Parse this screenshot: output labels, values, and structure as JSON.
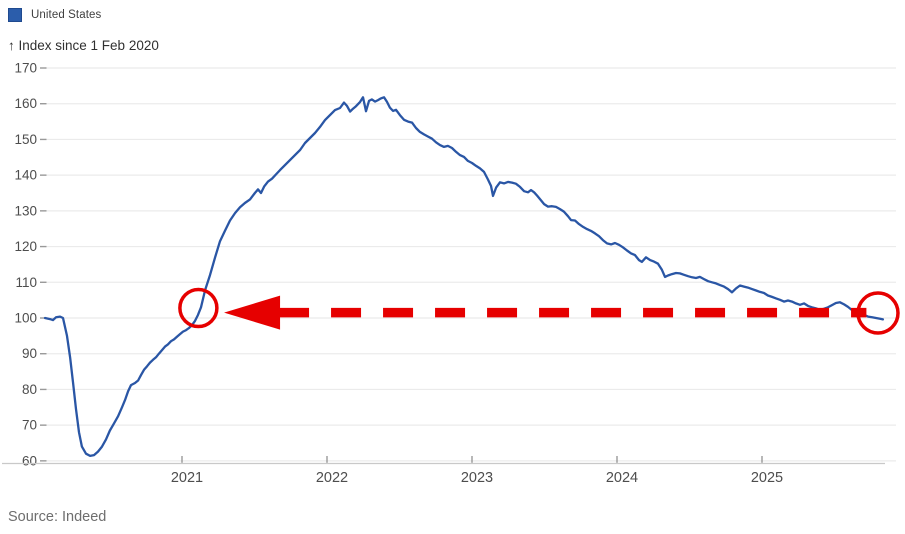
{
  "legend": {
    "label": "United States"
  },
  "source": {
    "label": "Source: Indeed"
  },
  "colors": {
    "line": "#2a56a5",
    "annotation_red": "#e60000",
    "grid": "#ebebeb",
    "axis_line": "#c9c9c9",
    "tick_mark": "#999999",
    "tick_label": "#4d4d4d",
    "title_text": "#303030",
    "source_text": "#6e6e6e",
    "legend_swatch": "#2b5dab"
  },
  "chart_data": {
    "type": "line",
    "title": "",
    "y_axis_title": "↑ Index since 1 Feb 2020",
    "xlabel": "",
    "ylabel": "Index since 1 Feb 2020",
    "x_ticks": [
      2021,
      2022,
      2023,
      2024,
      2025
    ],
    "y_ticks": [
      60,
      70,
      80,
      90,
      100,
      110,
      120,
      130,
      140,
      150,
      160,
      170
    ],
    "x_range_years": [
      2020.05,
      2025.9
    ],
    "ylim": [
      60,
      170
    ],
    "grid": true,
    "legend_position": "top-left",
    "baseline_value": 100,
    "series": [
      {
        "name": "United States",
        "color": "#2a56a5",
        "points": [
          [
            2020.055,
            100
          ],
          [
            2020.09,
            99.7
          ],
          [
            2020.11,
            99.4
          ],
          [
            2020.131,
            100.2
          ],
          [
            2020.159,
            100.4
          ],
          [
            2020.179,
            100
          ],
          [
            2020.207,
            95
          ],
          [
            2020.228,
            89
          ],
          [
            2020.248,
            82
          ],
          [
            2020.269,
            74.5
          ],
          [
            2020.29,
            68
          ],
          [
            2020.31,
            64
          ],
          [
            2020.338,
            62
          ],
          [
            2020.366,
            61.4
          ],
          [
            2020.393,
            61.6
          ],
          [
            2020.421,
            62.6
          ],
          [
            2020.448,
            64
          ],
          [
            2020.476,
            66
          ],
          [
            2020.503,
            68.5
          ],
          [
            2020.531,
            70.5
          ],
          [
            2020.559,
            72.5
          ],
          [
            2020.586,
            75
          ],
          [
            2020.607,
            77
          ],
          [
            2020.628,
            79.5
          ],
          [
            2020.648,
            81.2
          ],
          [
            2020.676,
            81.8
          ],
          [
            2020.697,
            82.5
          ],
          [
            2020.717,
            84
          ],
          [
            2020.738,
            85.5
          ],
          [
            2020.759,
            86.5
          ],
          [
            2020.779,
            87.5
          ],
          [
            2020.8,
            88.3
          ],
          [
            2020.821,
            89
          ],
          [
            2020.841,
            90
          ],
          [
            2020.862,
            91
          ],
          [
            2020.883,
            92
          ],
          [
            2020.903,
            92.6
          ],
          [
            2020.924,
            93.5
          ],
          [
            2020.945,
            94
          ],
          [
            2020.966,
            94.8
          ],
          [
            2020.986,
            95.5
          ],
          [
            2021.007,
            96.2
          ],
          [
            2021.028,
            96.6
          ],
          [
            2021.048,
            97.2
          ],
          [
            2021.069,
            98
          ],
          [
            2021.09,
            99.2
          ],
          [
            2021.11,
            100.8
          ],
          [
            2021.131,
            103
          ],
          [
            2021.159,
            107.8
          ],
          [
            2021.193,
            112
          ],
          [
            2021.228,
            117
          ],
          [
            2021.262,
            121.5
          ],
          [
            2021.297,
            124.5
          ],
          [
            2021.331,
            127.3
          ],
          [
            2021.366,
            129.4
          ],
          [
            2021.4,
            131
          ],
          [
            2021.434,
            132.2
          ],
          [
            2021.469,
            133.2
          ],
          [
            2021.503,
            135
          ],
          [
            2021.524,
            136
          ],
          [
            2021.545,
            135
          ],
          [
            2021.566,
            136.8
          ],
          [
            2021.593,
            138.2
          ],
          [
            2021.621,
            139
          ],
          [
            2021.648,
            140.2
          ],
          [
            2021.676,
            141.4
          ],
          [
            2021.71,
            142.8
          ],
          [
            2021.745,
            144.2
          ],
          [
            2021.779,
            145.6
          ],
          [
            2021.814,
            147
          ],
          [
            2021.848,
            149
          ],
          [
            2021.883,
            150.4
          ],
          [
            2021.917,
            151.8
          ],
          [
            2021.952,
            153.5
          ],
          [
            2021.986,
            155.4
          ],
          [
            2022.021,
            156.8
          ],
          [
            2022.055,
            158.2
          ],
          [
            2022.09,
            158.8
          ],
          [
            2022.117,
            160.3
          ],
          [
            2022.138,
            159.4
          ],
          [
            2022.159,
            157.8
          ],
          [
            2022.179,
            158.6
          ],
          [
            2022.2,
            159.3
          ],
          [
            2022.228,
            160.5
          ],
          [
            2022.248,
            161.8
          ],
          [
            2022.269,
            157.9
          ],
          [
            2022.29,
            160.8
          ],
          [
            2022.31,
            161.2
          ],
          [
            2022.331,
            160.6
          ],
          [
            2022.352,
            161
          ],
          [
            2022.372,
            161.5
          ],
          [
            2022.393,
            161.8
          ],
          [
            2022.414,
            160.5
          ],
          [
            2022.434,
            158.9
          ],
          [
            2022.455,
            158
          ],
          [
            2022.476,
            158.3
          ],
          [
            2022.503,
            156.8
          ],
          [
            2022.531,
            155.5
          ],
          [
            2022.559,
            155
          ],
          [
            2022.586,
            154.7
          ],
          [
            2022.614,
            153.2
          ],
          [
            2022.641,
            152.1
          ],
          [
            2022.669,
            151.4
          ],
          [
            2022.697,
            150.8
          ],
          [
            2022.724,
            150.2
          ],
          [
            2022.752,
            149.2
          ],
          [
            2022.779,
            148.4
          ],
          [
            2022.807,
            147.9
          ],
          [
            2022.834,
            148.2
          ],
          [
            2022.862,
            147.6
          ],
          [
            2022.89,
            146.5
          ],
          [
            2022.917,
            145.6
          ],
          [
            2022.945,
            145.1
          ],
          [
            2022.972,
            144
          ],
          [
            2023,
            143.4
          ],
          [
            2023.028,
            142.6
          ],
          [
            2023.055,
            141.9
          ],
          [
            2023.083,
            140.9
          ],
          [
            2023.11,
            138.8
          ],
          [
            2023.131,
            137
          ],
          [
            2023.145,
            134.2
          ],
          [
            2023.166,
            136.5
          ],
          [
            2023.193,
            138
          ],
          [
            2023.221,
            137.7
          ],
          [
            2023.248,
            138.1
          ],
          [
            2023.276,
            137.9
          ],
          [
            2023.303,
            137.6
          ],
          [
            2023.331,
            136.7
          ],
          [
            2023.359,
            135.5
          ],
          [
            2023.386,
            135.2
          ],
          [
            2023.407,
            135.8
          ],
          [
            2023.428,
            135.2
          ],
          [
            2023.448,
            134.3
          ],
          [
            2023.469,
            133.3
          ],
          [
            2023.497,
            131.9
          ],
          [
            2023.524,
            131.2
          ],
          [
            2023.552,
            131.3
          ],
          [
            2023.579,
            131.1
          ],
          [
            2023.607,
            130.5
          ],
          [
            2023.634,
            129.8
          ],
          [
            2023.662,
            128.5
          ],
          [
            2023.683,
            127.4
          ],
          [
            2023.71,
            127.3
          ],
          [
            2023.738,
            126.3
          ],
          [
            2023.766,
            125.5
          ],
          [
            2023.793,
            124.9
          ],
          [
            2023.821,
            124.4
          ],
          [
            2023.848,
            123.7
          ],
          [
            2023.876,
            122.9
          ],
          [
            2023.903,
            121.8
          ],
          [
            2023.931,
            120.9
          ],
          [
            2023.959,
            120.6
          ],
          [
            2023.986,
            121
          ],
          [
            2024.014,
            120.5
          ],
          [
            2024.041,
            119.8
          ],
          [
            2024.069,
            118.9
          ],
          [
            2024.097,
            118.1
          ],
          [
            2024.124,
            117.6
          ],
          [
            2024.152,
            116.2
          ],
          [
            2024.172,
            115.7
          ],
          [
            2024.2,
            117
          ],
          [
            2024.228,
            116.2
          ],
          [
            2024.255,
            115.8
          ],
          [
            2024.283,
            115.2
          ],
          [
            2024.31,
            113.5
          ],
          [
            2024.331,
            111.5
          ],
          [
            2024.352,
            111.9
          ],
          [
            2024.379,
            112.3
          ],
          [
            2024.407,
            112.6
          ],
          [
            2024.434,
            112.5
          ],
          [
            2024.462,
            112.1
          ],
          [
            2024.49,
            111.7
          ],
          [
            2024.517,
            111.4
          ],
          [
            2024.545,
            111.2
          ],
          [
            2024.572,
            111.5
          ],
          [
            2024.6,
            110.9
          ],
          [
            2024.628,
            110.3
          ],
          [
            2024.655,
            110
          ],
          [
            2024.683,
            109.7
          ],
          [
            2024.71,
            109.2
          ],
          [
            2024.738,
            108.8
          ],
          [
            2024.766,
            108.1
          ],
          [
            2024.793,
            107.2
          ],
          [
            2024.821,
            108.3
          ],
          [
            2024.848,
            109.1
          ],
          [
            2024.876,
            108.8
          ],
          [
            2024.903,
            108.5
          ],
          [
            2024.931,
            108.1
          ],
          [
            2024.959,
            107.7
          ],
          [
            2024.986,
            107.3
          ],
          [
            2025.014,
            107
          ],
          [
            2025.041,
            106.3
          ],
          [
            2025.069,
            105.9
          ],
          [
            2025.097,
            105.5
          ],
          [
            2025.124,
            105.1
          ],
          [
            2025.152,
            104.6
          ],
          [
            2025.179,
            104.9
          ],
          [
            2025.207,
            104.6
          ],
          [
            2025.234,
            104.1
          ],
          [
            2025.262,
            103.7
          ],
          [
            2025.29,
            104.1
          ],
          [
            2025.317,
            103.4
          ],
          [
            2025.345,
            103
          ],
          [
            2025.372,
            102.7
          ],
          [
            2025.4,
            102.3
          ],
          [
            2025.428,
            102.6
          ],
          [
            2025.455,
            103
          ],
          [
            2025.483,
            103.6
          ],
          [
            2025.51,
            104.2
          ],
          [
            2025.538,
            104.4
          ],
          [
            2025.566,
            103.8
          ],
          [
            2025.593,
            103.1
          ],
          [
            2025.621,
            102.2
          ],
          [
            2025.648,
            101.7
          ],
          [
            2025.676,
            101.4
          ],
          [
            2025.703,
            100.9
          ],
          [
            2025.731,
            100.4
          ],
          [
            2025.759,
            100.2
          ],
          [
            2025.786,
            100
          ],
          [
            2025.814,
            99.8
          ],
          [
            2025.834,
            99.6
          ]
        ]
      }
    ],
    "annotation": {
      "kind": "dashed-arrow-left",
      "meaning": "latest index value (late 2025) is back at the same level (~100) first crossed in early 2021",
      "color": "#e60000",
      "arrow_value": 101.5,
      "arrow_tip_year": 2021.29,
      "arrow_tail_year": 2025.72,
      "circles": [
        {
          "year": 2021.113,
          "value": 102.8,
          "r": 18.5
        },
        {
          "year": 2025.8,
          "value": 101.4,
          "r": 20
        }
      ]
    }
  }
}
